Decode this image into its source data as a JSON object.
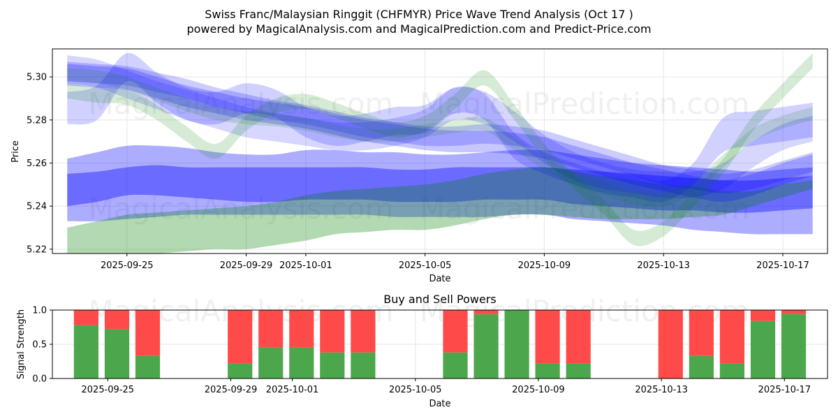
{
  "title": "Swiss Franc/Malaysian Ringgit (CHFMYR) Price Wave Trend Analysis (Oct 17 )",
  "subtitle": "powered by MagicalAnalysis.com and MagicalPrediction.com and Predict-Price.com",
  "watermarks": [
    "MagicalAnalysis.com",
    "MagicalPrediction.com"
  ],
  "colors": {
    "blue_band": "#0000ff",
    "green_band": "#008000",
    "buy": "#4ca64c",
    "sell": "#ff4a4a"
  },
  "chart_data": [
    {
      "type": "area",
      "name": "price-wave-chart",
      "xlabel": "Date",
      "ylabel": "Price",
      "ylim": [
        5.218,
        5.313
      ],
      "xlim_day_offsets": [
        -5.5,
        20.5
      ],
      "x_ticks": [
        {
          "offset": -3,
          "label": "2025-09-25"
        },
        {
          "offset": 1,
          "label": "2025-09-29"
        },
        {
          "offset": 3,
          "label": "2025-10-01"
        },
        {
          "offset": 7,
          "label": "2025-10-05"
        },
        {
          "offset": 11,
          "label": "2025-10-09"
        },
        {
          "offset": 15,
          "label": "2025-10-13"
        },
        {
          "offset": 19,
          "label": "2025-10-17"
        }
      ],
      "y_ticks": [
        5.22,
        5.24,
        5.26,
        5.28,
        5.3
      ],
      "x_day_offsets": [
        -5,
        -4,
        -3,
        -2,
        -1,
        0,
        1,
        2,
        3,
        4,
        5,
        6,
        7,
        8,
        9,
        10,
        11,
        12,
        13,
        14,
        15,
        16,
        17,
        18,
        19,
        20
      ],
      "series": [
        {
          "name": "lower-wide-blue",
          "color": "blue",
          "opacity": 0.32,
          "lower": [
            5.233,
            5.233,
            5.234,
            5.235,
            5.236,
            5.236,
            5.236,
            5.236,
            5.236,
            5.236,
            5.236,
            5.235,
            5.235,
            5.235,
            5.235,
            5.236,
            5.236,
            5.234,
            5.233,
            5.232,
            5.231,
            5.229,
            5.228,
            5.227,
            5.227,
            5.227
          ],
          "upper": [
            5.262,
            5.265,
            5.268,
            5.268,
            5.267,
            5.265,
            5.264,
            5.264,
            5.266,
            5.266,
            5.265,
            5.265,
            5.264,
            5.264,
            5.265,
            5.266,
            5.266,
            5.264,
            5.262,
            5.26,
            5.259,
            5.258,
            5.257,
            5.256,
            5.257,
            5.258
          ]
        },
        {
          "name": "lower-core-blue",
          "color": "blue",
          "opacity": 0.38,
          "lower": [
            5.24,
            5.242,
            5.245,
            5.245,
            5.244,
            5.243,
            5.242,
            5.242,
            5.243,
            5.243,
            5.243,
            5.242,
            5.242,
            5.242,
            5.243,
            5.243,
            5.243,
            5.241,
            5.24,
            5.239,
            5.238,
            5.238,
            5.237,
            5.237,
            5.238,
            5.239
          ],
          "upper": [
            5.255,
            5.256,
            5.258,
            5.259,
            5.258,
            5.258,
            5.258,
            5.258,
            5.258,
            5.258,
            5.258,
            5.257,
            5.257,
            5.258,
            5.258,
            5.258,
            5.258,
            5.257,
            5.256,
            5.255,
            5.254,
            5.253,
            5.252,
            5.252,
            5.253,
            5.254
          ]
        },
        {
          "name": "lower-green",
          "color": "green",
          "opacity": 0.3,
          "lower": [
            5.218,
            5.217,
            5.217,
            5.218,
            5.219,
            5.22,
            5.22,
            5.222,
            5.224,
            5.227,
            5.228,
            5.229,
            5.229,
            5.231,
            5.234,
            5.236,
            5.236,
            5.235,
            5.234,
            5.234,
            5.234,
            5.235,
            5.236,
            5.24,
            5.244,
            5.248
          ],
          "upper": [
            5.23,
            5.233,
            5.236,
            5.237,
            5.238,
            5.239,
            5.24,
            5.242,
            5.245,
            5.247,
            5.248,
            5.249,
            5.25,
            5.252,
            5.255,
            5.257,
            5.258,
            5.256,
            5.254,
            5.252,
            5.25,
            5.249,
            5.247,
            5.247,
            5.25,
            5.252
          ]
        },
        {
          "name": "upper-band-1",
          "color": "blue",
          "opacity": 0.22,
          "lower": [
            5.296,
            5.295,
            5.294,
            5.29,
            5.286,
            5.283,
            5.28,
            5.278,
            5.276,
            5.273,
            5.27,
            5.268,
            5.266,
            5.265,
            5.265,
            5.264,
            5.262,
            5.258,
            5.254,
            5.25,
            5.247,
            5.244,
            5.242,
            5.245,
            5.25,
            5.254
          ],
          "upper": [
            5.306,
            5.305,
            5.304,
            5.3,
            5.296,
            5.293,
            5.29,
            5.288,
            5.286,
            5.283,
            5.28,
            5.278,
            5.276,
            5.275,
            5.275,
            5.274,
            5.272,
            5.268,
            5.264,
            5.26,
            5.257,
            5.254,
            5.252,
            5.255,
            5.26,
            5.264
          ]
        },
        {
          "name": "upper-band-2",
          "color": "blue",
          "opacity": 0.2,
          "lower": [
            5.298,
            5.297,
            5.296,
            5.293,
            5.29,
            5.286,
            5.283,
            5.28,
            5.278,
            5.275,
            5.272,
            5.27,
            5.268,
            5.268,
            5.269,
            5.268,
            5.266,
            5.262,
            5.258,
            5.254,
            5.25,
            5.248,
            5.246,
            5.248,
            5.252,
            5.256
          ],
          "upper": [
            5.307,
            5.306,
            5.305,
            5.302,
            5.299,
            5.295,
            5.292,
            5.289,
            5.287,
            5.284,
            5.281,
            5.279,
            5.277,
            5.277,
            5.278,
            5.277,
            5.275,
            5.271,
            5.267,
            5.263,
            5.259,
            5.257,
            5.255,
            5.257,
            5.261,
            5.265
          ]
        },
        {
          "name": "upper-band-3",
          "color": "blue",
          "opacity": 0.18,
          "lower": [
            5.278,
            5.28,
            5.298,
            5.288,
            5.28,
            5.278,
            5.283,
            5.281,
            5.272,
            5.268,
            5.27,
            5.273,
            5.274,
            5.283,
            5.28,
            5.262,
            5.255,
            5.25,
            5.246,
            5.244,
            5.242,
            5.25,
            5.265,
            5.268,
            5.27,
            5.272
          ],
          "upper": [
            5.293,
            5.296,
            5.311,
            5.302,
            5.295,
            5.293,
            5.297,
            5.294,
            5.286,
            5.282,
            5.283,
            5.286,
            5.287,
            5.295,
            5.292,
            5.274,
            5.265,
            5.26,
            5.256,
            5.254,
            5.252,
            5.26,
            5.281,
            5.284,
            5.286,
            5.288
          ]
        },
        {
          "name": "upper-band-4",
          "color": "blue",
          "opacity": 0.16,
          "lower": [
            5.297,
            5.295,
            5.29,
            5.285,
            5.28,
            5.276,
            5.272,
            5.27,
            5.268,
            5.266,
            5.266,
            5.268,
            5.272,
            5.28,
            5.278,
            5.27,
            5.26,
            5.252,
            5.248,
            5.246,
            5.244,
            5.244,
            5.248,
            5.258,
            5.266,
            5.27
          ],
          "upper": [
            5.31,
            5.308,
            5.303,
            5.298,
            5.294,
            5.29,
            5.286,
            5.283,
            5.281,
            5.279,
            5.279,
            5.281,
            5.285,
            5.295,
            5.293,
            5.284,
            5.273,
            5.265,
            5.26,
            5.257,
            5.256,
            5.256,
            5.26,
            5.27,
            5.278,
            5.282
          ]
        },
        {
          "name": "green-wave-1",
          "color": "green",
          "opacity": 0.16,
          "lower": [
            5.29,
            5.288,
            5.287,
            5.28,
            5.27,
            5.262,
            5.275,
            5.283,
            5.285,
            5.281,
            5.276,
            5.272,
            5.275,
            5.285,
            5.296,
            5.28,
            5.262,
            5.248,
            5.236,
            5.222,
            5.226,
            5.24,
            5.255,
            5.275,
            5.29,
            5.304
          ],
          "upper": [
            5.297,
            5.295,
            5.294,
            5.287,
            5.277,
            5.269,
            5.282,
            5.29,
            5.292,
            5.288,
            5.283,
            5.279,
            5.282,
            5.292,
            5.303,
            5.287,
            5.269,
            5.255,
            5.243,
            5.229,
            5.233,
            5.247,
            5.262,
            5.282,
            5.297,
            5.311
          ]
        },
        {
          "name": "green-wave-2",
          "color": "green",
          "opacity": 0.14,
          "lower": [
            5.298,
            5.297,
            5.294,
            5.289,
            5.284,
            5.28,
            5.278,
            5.277,
            5.275,
            5.272,
            5.27,
            5.27,
            5.272,
            5.274,
            5.275,
            5.266,
            5.257,
            5.25,
            5.245,
            5.241,
            5.24,
            5.246,
            5.258,
            5.27,
            5.276,
            5.28
          ],
          "upper": [
            5.304,
            5.303,
            5.3,
            5.295,
            5.29,
            5.286,
            5.284,
            5.283,
            5.281,
            5.278,
            5.276,
            5.276,
            5.278,
            5.28,
            5.281,
            5.272,
            5.263,
            5.256,
            5.251,
            5.247,
            5.246,
            5.252,
            5.264,
            5.276,
            5.282,
            5.286
          ]
        }
      ]
    },
    {
      "type": "bar",
      "name": "buy-sell-powers-chart",
      "title": "Buy and Sell Powers",
      "xlabel": "Date",
      "ylabel": "Signal Strength",
      "ylim": [
        0,
        1.0
      ],
      "y_ticks": [
        0.0,
        0.5,
        1.0
      ],
      "x_ticks": [
        {
          "offset": -3,
          "label": "2025-09-25"
        },
        {
          "offset": 1,
          "label": "2025-09-29"
        },
        {
          "offset": 3,
          "label": "2025-10-01"
        },
        {
          "offset": 7,
          "label": "2025-10-05"
        },
        {
          "offset": 11,
          "label": "2025-10-09"
        },
        {
          "offset": 15,
          "label": "2025-10-13"
        },
        {
          "offset": 19,
          "label": "2025-10-17"
        }
      ],
      "series": [
        {
          "name": "Buy",
          "color": "#4ca64c"
        },
        {
          "name": "Sell",
          "color": "#ff4a4a"
        }
      ],
      "bars": [
        {
          "offset": -4,
          "date": "2025-09-24",
          "buy": 0.78
        },
        {
          "offset": -3,
          "date": "2025-09-25",
          "buy": 0.72
        },
        {
          "offset": -2,
          "date": "2025-09-26",
          "buy": 0.33
        },
        {
          "offset": 1,
          "date": "2025-09-29",
          "buy": 0.22
        },
        {
          "offset": 2,
          "date": "2025-09-30",
          "buy": 0.45
        },
        {
          "offset": 3,
          "date": "2025-10-01",
          "buy": 0.45
        },
        {
          "offset": 4,
          "date": "2025-10-02",
          "buy": 0.38
        },
        {
          "offset": 5,
          "date": "2025-10-03",
          "buy": 0.38
        },
        {
          "offset": 8,
          "date": "2025-10-06",
          "buy": 0.38
        },
        {
          "offset": 9,
          "date": "2025-10-07",
          "buy": 0.94
        },
        {
          "offset": 10,
          "date": "2025-10-08",
          "buy": 1.0
        },
        {
          "offset": 11,
          "date": "2025-10-09",
          "buy": 0.22
        },
        {
          "offset": 12,
          "date": "2025-10-10",
          "buy": 0.22
        },
        {
          "offset": 15,
          "date": "2025-10-13",
          "buy": 0.0
        },
        {
          "offset": 16,
          "date": "2025-10-14",
          "buy": 0.33
        },
        {
          "offset": 17,
          "date": "2025-10-15",
          "buy": 0.22
        },
        {
          "offset": 18,
          "date": "2025-10-16",
          "buy": 0.84
        },
        {
          "offset": 19,
          "date": "2025-10-17",
          "buy": 0.94
        }
      ]
    }
  ]
}
